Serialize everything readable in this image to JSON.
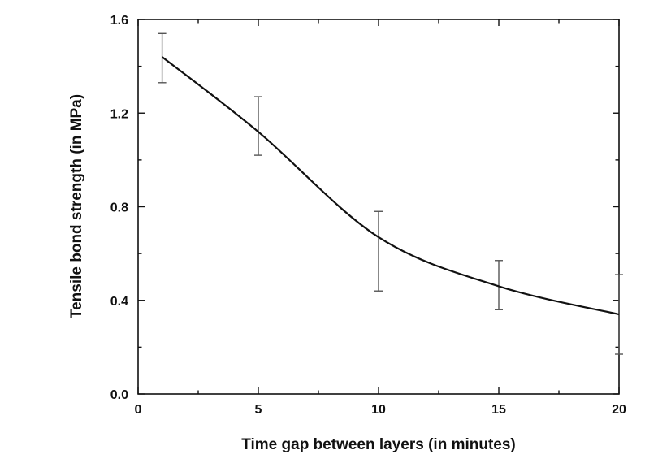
{
  "chart_data": {
    "type": "line",
    "title": "",
    "xlabel": "Time gap between layers (in minutes)",
    "ylabel": "Tensile bond strength (in MPa)",
    "xlim": [
      0,
      20
    ],
    "ylim": [
      0,
      1.6
    ],
    "x_ticks": [
      "0",
      "5",
      "10",
      "15",
      "20"
    ],
    "y_ticks": [
      "0.0",
      "0.4",
      "0.8",
      "1.2",
      "1.6"
    ],
    "grid": false,
    "series": [
      {
        "x": [
          1,
          5,
          10,
          15,
          20
        ],
        "y": [
          1.44,
          1.12,
          0.67,
          0.46,
          0.34
        ],
        "error_low": [
          1.33,
          1.02,
          0.44,
          0.36,
          0.17
        ],
        "error_high": [
          1.54,
          1.27,
          0.78,
          0.57,
          0.51
        ],
        "color": "#111111"
      }
    ]
  }
}
